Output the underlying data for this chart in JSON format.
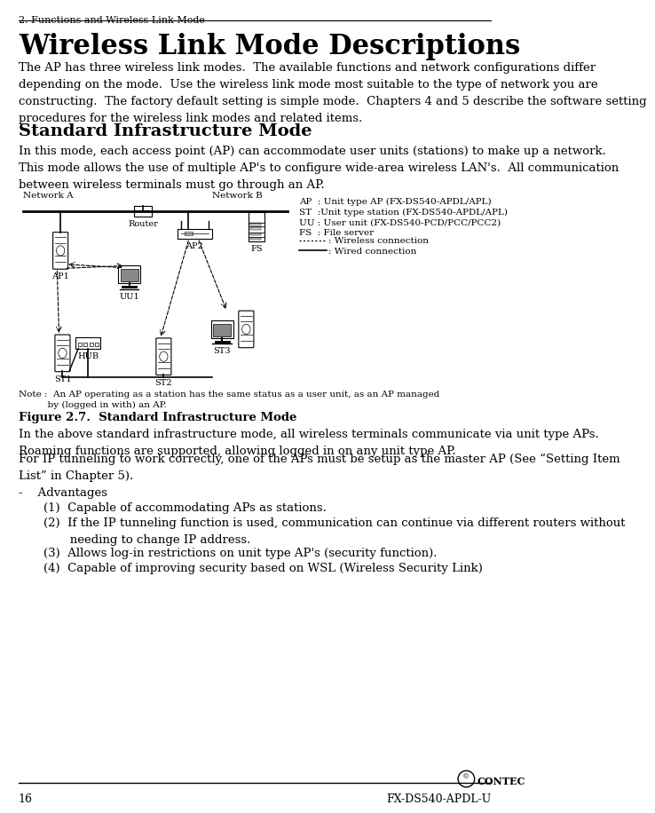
{
  "page_header": "2. Functions and Wireless Link Mode",
  "page_number": "16",
  "page_footer_right": "FX-DS540-APDL-U",
  "main_title": "Wireless Link Mode Descriptions",
  "intro_text": "The AP has three wireless link modes.  The available functions and network configurations differ\ndepending on the mode.  Use the wireless link mode most suitable to the type of network you are\nconstructing.  The factory default setting is simple mode.  Chapters 4 and 5 describe the software setting\nprocedures for the wireless link modes and related items.",
  "section_title": "Standard Infrastructure Mode",
  "section_intro": "In this mode, each access point (AP) can accommodate user units (stations) to make up a network.\nThis mode allows the use of multiple AP's to configure wide-area wireless LAN's.  All communication\nbetween wireless terminals must go through an AP.",
  "figure_caption": "Figure 2.7.  Standard Infrastructure Mode",
  "figure_note": "Note :  An AP operating as a station has the same status as a user unit, as an AP managed\n          by (logged in with) an AP.",
  "after_figure_text1": "In the above standard infrastructure mode, all wireless terminals communicate via unit type APs.\nRoaming functions are supported, allowing logged in on any unit type AP.",
  "after_figure_text2": "For IP tunneling to work correctly, one of the APs must be setup as the master AP (See “Setting Item\nList” in Chapter 5).",
  "advantages_header": "-    Advantages",
  "advantages": [
    "(1)  Capable of accommodating APs as stations.",
    "(2)  If the IP tunneling function is used, communication can continue via different routers without\n       needing to change IP address.",
    "(3)  Allows log-in restrictions on unit type AP's (security function).",
    "(4)  Capable of improving security based on WSL (Wireless Security Link)"
  ],
  "legend_ap": "AP  : Unit type AP (FX-DS540-APDL/APL)",
  "legend_st": "ST  :Unit type station (FX-DS540-APDL/APL)",
  "legend_uu": "UU : User unit (FX-DS540-PCD/PCC/PCC2)",
  "legend_fs": "FS  : File server",
  "legend_wireless": "............  : Wireless connection",
  "legend_wired": "               : Wired connection",
  "bg_color": "#ffffff",
  "text_color": "#000000"
}
